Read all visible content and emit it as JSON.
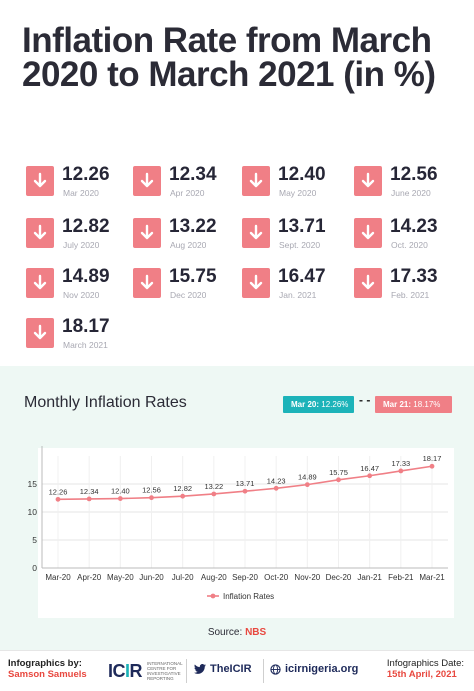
{
  "title": "Inflation Rate from March 2020 to March 2021 (in %)",
  "tiles": [
    {
      "value": "12.26",
      "label": "Mar 2020"
    },
    {
      "value": "12.34",
      "label": "Apr 2020"
    },
    {
      "value": "12.40",
      "label": "May 2020"
    },
    {
      "value": "12.56",
      "label": "June 2020"
    },
    {
      "value": "12.82",
      "label": "July 2020"
    },
    {
      "value": "13.22",
      "label": "Aug 2020"
    },
    {
      "value": "13.71",
      "label": "Sept. 2020"
    },
    {
      "value": "14.23",
      "label": "Oct. 2020"
    },
    {
      "value": "14.89",
      "label": "Nov 2020"
    },
    {
      "value": "15.75",
      "label": "Dec 2020"
    },
    {
      "value": "16.47",
      "label": "Jan. 2021"
    },
    {
      "value": "17.33",
      "label": "Feb. 2021"
    },
    {
      "value": "18.17",
      "label": "March 2021"
    }
  ],
  "chart_panel": {
    "heading": "Monthly Inflation Rates",
    "pill_start": {
      "key": "Mar 20:",
      "value": "12.26%"
    },
    "pill_end": {
      "key": "Mar 21:",
      "value": "18.17%"
    },
    "pill_separator": "- -"
  },
  "chart_data": {
    "type": "line",
    "categories": [
      "Mar-20",
      "Apr-20",
      "May-20",
      "Jun-20",
      "Jul-20",
      "Aug-20",
      "Sep-20",
      "Oct-20",
      "Nov-20",
      "Dec-20",
      "Jan-21",
      "Feb-21",
      "Mar-21"
    ],
    "series": [
      {
        "name": "Inflation Rates",
        "values": [
          12.26,
          12.34,
          12.4,
          12.56,
          12.82,
          13.22,
          13.71,
          14.23,
          14.89,
          15.75,
          16.47,
          17.33,
          18.17
        ],
        "color": "#f07f86"
      }
    ],
    "yticks": [
      "0",
      "5",
      "10",
      "15"
    ],
    "ylim": [
      0,
      20
    ],
    "grid": true,
    "legend": "bottom",
    "data_labels": true
  },
  "source": {
    "prefix": "Source:",
    "name": "NBS"
  },
  "footer": {
    "credit_label": "Infographics by:",
    "credit_name": "Samson Samuels",
    "logo_text_a": "IC",
    "logo_text_b": "I",
    "logo_text_c": "R",
    "logo_tagline": "INTERNATIONAL CENTRE FOR INVESTIGATIVE REPORTING",
    "twitter": "TheICIR",
    "website": "icirnigeria.org",
    "date_label": "Infographics Date:",
    "date_value": "15th April, 2021"
  },
  "colors": {
    "accent_pink": "#f07f86",
    "accent_teal": "#1cb3b9",
    "panel_bg": "#eef8f4"
  }
}
